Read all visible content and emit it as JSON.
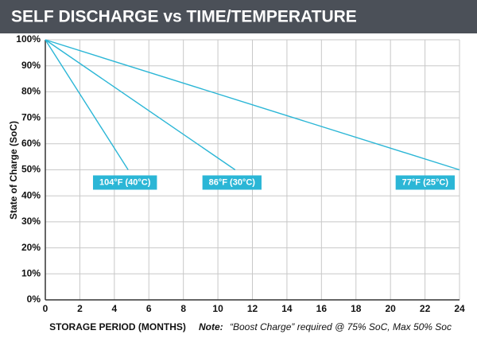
{
  "chart_data": {
    "type": "line",
    "title": "SELF DISCHARGE vs TIME/TEMPERATURE",
    "x_label": "STORAGE PERIOD (MONTHS)",
    "y_label": "State of Charge (SoC)",
    "note_prefix": "Note:",
    "note": "“Boost Charge” required @ 75% SoC, Max 50% Soc",
    "xlim": [
      0,
      24
    ],
    "xticks": [
      0,
      2,
      4,
      6,
      8,
      10,
      12,
      14,
      16,
      18,
      20,
      22,
      24
    ],
    "ylim": [
      0,
      100
    ],
    "yticks": [
      {
        "value": 0,
        "label": "0%"
      },
      {
        "value": 10,
        "label": "10%"
      },
      {
        "value": 20,
        "label": "20%"
      },
      {
        "value": 30,
        "label": "30%"
      },
      {
        "value": 40,
        "label": "40%"
      },
      {
        "value": 50,
        "label": "50%"
      },
      {
        "value": 60,
        "label": "60%"
      },
      {
        "value": 70,
        "label": "70%"
      },
      {
        "value": 80,
        "label": "80%"
      },
      {
        "value": 90,
        "label": "90%"
      },
      {
        "value": 100,
        "label": "100%"
      }
    ],
    "grid": true,
    "series": [
      {
        "name": "104°F (40°C)",
        "color": "#2bb6d6",
        "x": [
          0,
          4.8
        ],
        "values": [
          100,
          50
        ]
      },
      {
        "name": "86°F (30°C)",
        "color": "#2bb6d6",
        "x": [
          0,
          11
        ],
        "values": [
          100,
          50
        ]
      },
      {
        "name": "77°F (25°C)",
        "color": "#2bb6d6",
        "x": [
          0,
          24
        ],
        "values": [
          100,
          50
        ]
      }
    ]
  }
}
